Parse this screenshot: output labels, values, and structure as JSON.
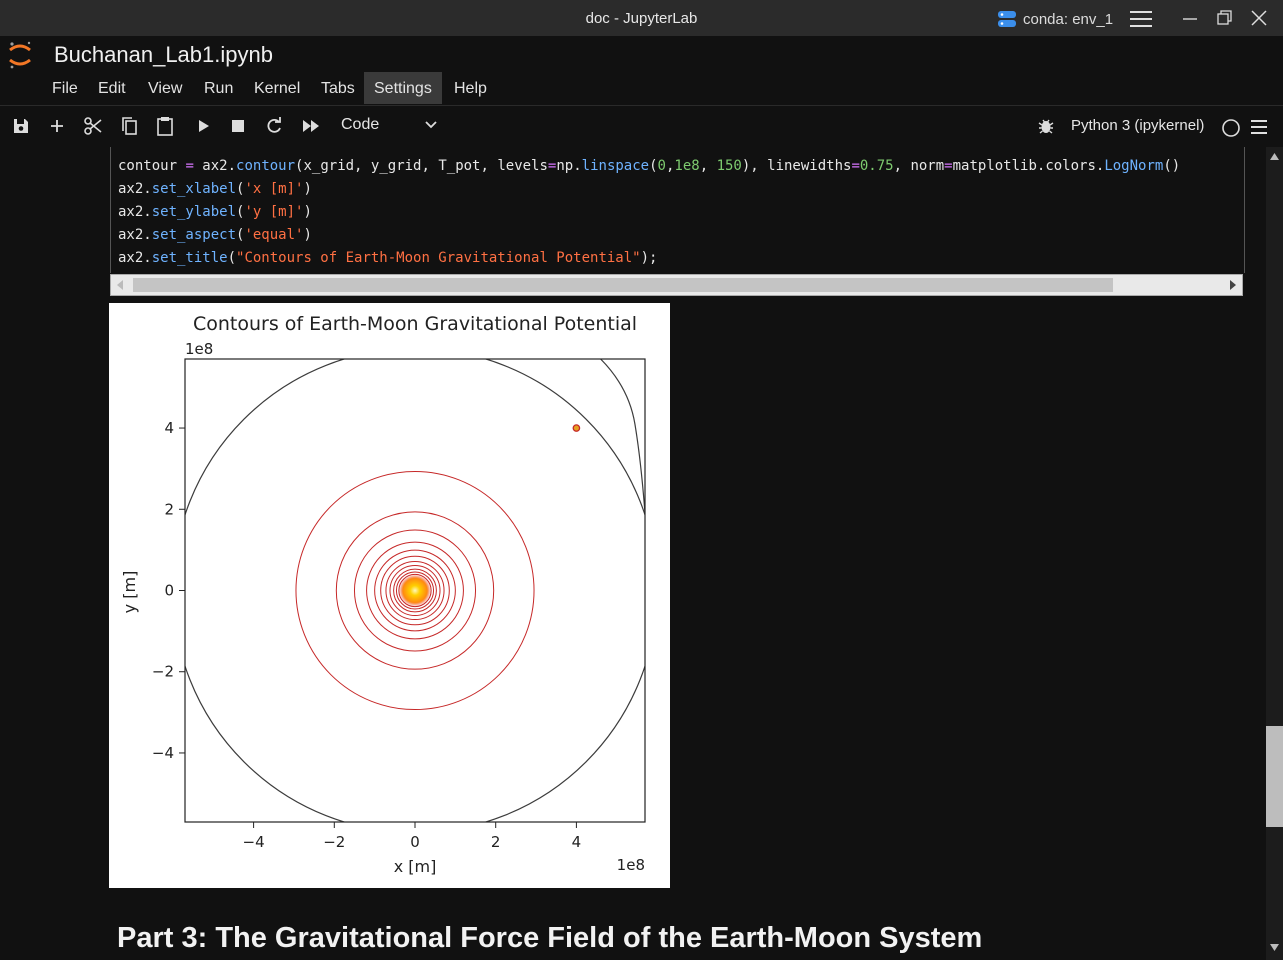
{
  "window": {
    "title": "doc - JupyterLab",
    "conda_label": "conda: env_1"
  },
  "notebook": {
    "name": "Buchanan_Lab1.ipynb"
  },
  "menu": [
    "File",
    "Edit",
    "View",
    "Run",
    "Kernel",
    "Tabs",
    "Settings",
    "Help"
  ],
  "menu_active": "Settings",
  "toolbar": {
    "cell_type": "Code",
    "kernel": "Python 3 (ipykernel)"
  },
  "code_lines": [
    "contour = ax2.contour(x_grid, y_grid, T_pot, levels=np.linspace(0,1e8, 150), linewidths=0.75, norm=matplotlib.colors.LogNorm()",
    "ax2.set_xlabel('x [m]')",
    "ax2.set_ylabel('y [m]')",
    "ax2.set_aspect('equal')",
    "ax2.set_title(\"Contours of Earth-Moon Gravitational Potential\");"
  ],
  "chart_data": {
    "type": "contour",
    "title": "Contours of Earth-Moon Gravitational Potential",
    "xlabel": "x [m]",
    "ylabel": "y [m]",
    "x_offset_label": "1e8",
    "y_offset_label": "1e8",
    "xlim": [
      -5.7,
      5.7
    ],
    "ylim": [
      -5.7,
      5.7
    ],
    "x_ticks": [
      -4,
      -2,
      0,
      2,
      4
    ],
    "y_ticks": [
      4,
      2,
      0,
      -2,
      -4
    ],
    "x_tick_labels": [
      "−4",
      "−2",
      "0",
      "2",
      "4"
    ],
    "y_tick_labels": [
      "4",
      "2",
      "0",
      "−2",
      "−4"
    ],
    "earth_center": [
      0,
      0
    ],
    "moon_center": [
      4.0,
      4.0
    ],
    "contour_radii": [
      2.95,
      1.95,
      1.5,
      1.2,
      1.0,
      0.85,
      0.72,
      0.62,
      0.53,
      0.46,
      0.4
    ],
    "outer_contour_radius": 6.0,
    "colors": {
      "inner": "#c62828",
      "outer": "#3c3c3c",
      "core": "#ffd000"
    }
  },
  "heading": "Part 3: The Gravitational Force Field of the Earth-Moon System"
}
